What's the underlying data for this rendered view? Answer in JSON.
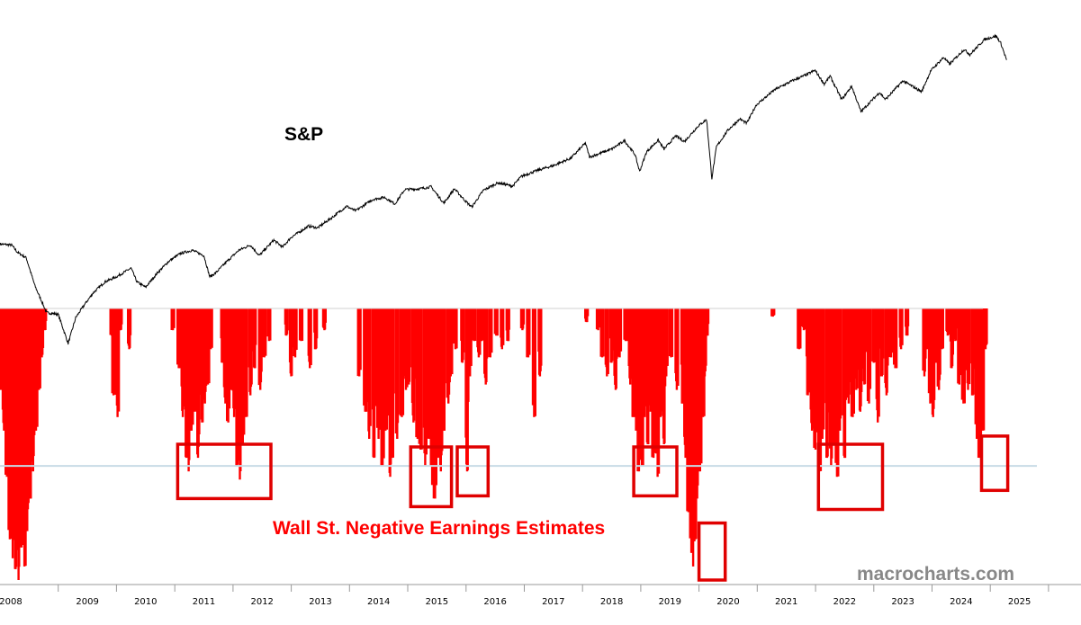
{
  "colors": {
    "price_line": "#000000",
    "bars": "#ff0000",
    "highlight_boxes": "#e00000",
    "threshold_line": "#c8dce6",
    "axis": "#999999",
    "label_red": "#ff0000",
    "watermark": "#888888"
  },
  "labels": {
    "sp": "S&P",
    "negative": "Wall St. Negative Earnings Estimates",
    "watermark": "macrocharts.com"
  },
  "chart_data": {
    "type": "line",
    "x_tick_labels": [
      "2008",
      "2009",
      "2010",
      "2011",
      "2012",
      "2013",
      "2014",
      "2015",
      "2016",
      "2017",
      "2018",
      "2019",
      "2020",
      "2021",
      "2022",
      "2023",
      "2024",
      "2025"
    ],
    "xlim": [
      2008.0,
      2025.8
    ],
    "series": [
      {
        "name": "S&P",
        "style": "line",
        "points": [
          [
            2008.0,
            1410
          ],
          [
            2008.2,
            1400
          ],
          [
            2008.3,
            1330
          ],
          [
            2008.45,
            1280
          ],
          [
            2008.6,
            1050
          ],
          [
            2008.8,
            870
          ],
          [
            2009.0,
            860
          ],
          [
            2009.17,
            700
          ],
          [
            2009.3,
            840
          ],
          [
            2009.45,
            920
          ],
          [
            2009.6,
            1000
          ],
          [
            2009.8,
            1080
          ],
          [
            2010.0,
            1120
          ],
          [
            2010.25,
            1190
          ],
          [
            2010.35,
            1080
          ],
          [
            2010.5,
            1040
          ],
          [
            2010.7,
            1150
          ],
          [
            2010.9,
            1250
          ],
          [
            2011.1,
            1320
          ],
          [
            2011.3,
            1350
          ],
          [
            2011.5,
            1300
          ],
          [
            2011.6,
            1120
          ],
          [
            2011.7,
            1150
          ],
          [
            2011.9,
            1250
          ],
          [
            2012.1,
            1350
          ],
          [
            2012.3,
            1400
          ],
          [
            2012.45,
            1300
          ],
          [
            2012.7,
            1450
          ],
          [
            2012.85,
            1380
          ],
          [
            2013.0,
            1480
          ],
          [
            2013.3,
            1600
          ],
          [
            2013.45,
            1580
          ],
          [
            2013.7,
            1700
          ],
          [
            2013.95,
            1840
          ],
          [
            2014.1,
            1780
          ],
          [
            2014.4,
            1930
          ],
          [
            2014.6,
            1960
          ],
          [
            2014.78,
            1870
          ],
          [
            2014.95,
            2070
          ],
          [
            2015.2,
            2080
          ],
          [
            2015.4,
            2110
          ],
          [
            2015.62,
            1880
          ],
          [
            2015.8,
            2080
          ],
          [
            2016.0,
            1900
          ],
          [
            2016.1,
            1830
          ],
          [
            2016.3,
            2060
          ],
          [
            2016.55,
            2170
          ],
          [
            2016.8,
            2120
          ],
          [
            2016.95,
            2270
          ],
          [
            2017.2,
            2360
          ],
          [
            2017.5,
            2450
          ],
          [
            2017.8,
            2580
          ],
          [
            2018.05,
            2870
          ],
          [
            2018.12,
            2600
          ],
          [
            2018.5,
            2750
          ],
          [
            2018.72,
            2920
          ],
          [
            2018.9,
            2650
          ],
          [
            2018.98,
            2350
          ],
          [
            2019.1,
            2700
          ],
          [
            2019.3,
            2930
          ],
          [
            2019.4,
            2750
          ],
          [
            2019.6,
            3020
          ],
          [
            2019.75,
            2900
          ],
          [
            2019.98,
            3230
          ],
          [
            2020.13,
            3390
          ],
          [
            2020.22,
            2240
          ],
          [
            2020.3,
            2800
          ],
          [
            2020.5,
            3150
          ],
          [
            2020.7,
            3400
          ],
          [
            2020.82,
            3300
          ],
          [
            2020.98,
            3750
          ],
          [
            2021.3,
            4180
          ],
          [
            2021.6,
            4450
          ],
          [
            2021.85,
            4650
          ],
          [
            2021.99,
            4790
          ],
          [
            2022.15,
            4350
          ],
          [
            2022.25,
            4600
          ],
          [
            2022.45,
            3900
          ],
          [
            2022.62,
            4280
          ],
          [
            2022.78,
            3580
          ],
          [
            2022.95,
            3850
          ],
          [
            2023.1,
            4100
          ],
          [
            2023.2,
            3900
          ],
          [
            2023.5,
            4450
          ],
          [
            2023.82,
            4120
          ],
          [
            2023.98,
            4780
          ],
          [
            2024.2,
            5250
          ],
          [
            2024.3,
            5000
          ],
          [
            2024.55,
            5550
          ],
          [
            2024.65,
            5350
          ],
          [
            2024.9,
            5950
          ],
          [
            2025.1,
            6100
          ],
          [
            2025.18,
            5800
          ],
          [
            2025.28,
            5150
          ]
        ]
      },
      {
        "name": "Wall St. Negative Earnings Estimates",
        "style": "bars",
        "bars": [
          [
            2008.0,
            0.3
          ],
          [
            2008.05,
            0.45
          ],
          [
            2008.1,
            0.62
          ],
          [
            2008.15,
            0.85
          ],
          [
            2008.2,
            0.92
          ],
          [
            2008.25,
            0.96
          ],
          [
            2008.3,
            1.0
          ],
          [
            2008.35,
            0.88
          ],
          [
            2008.4,
            0.95
          ],
          [
            2008.45,
            0.82
          ],
          [
            2008.5,
            0.7
          ],
          [
            2008.55,
            0.6
          ],
          [
            2008.6,
            0.45
          ],
          [
            2008.65,
            0.3
          ],
          [
            2008.7,
            0.18
          ],
          [
            2008.75,
            0.08
          ],
          [
            2009.9,
            0.1
          ],
          [
            2009.93,
            0.32
          ],
          [
            2010.0,
            0.4
          ],
          [
            2010.05,
            0.08
          ],
          [
            2010.2,
            0.15
          ],
          [
            2010.95,
            0.08
          ],
          [
            2011.05,
            0.22
          ],
          [
            2011.12,
            0.4
          ],
          [
            2011.18,
            0.55
          ],
          [
            2011.22,
            0.6
          ],
          [
            2011.27,
            0.45
          ],
          [
            2011.33,
            0.38
          ],
          [
            2011.38,
            0.55
          ],
          [
            2011.45,
            0.42
          ],
          [
            2011.5,
            0.35
          ],
          [
            2011.55,
            0.28
          ],
          [
            2011.6,
            0.15
          ],
          [
            2011.8,
            0.2
          ],
          [
            2011.85,
            0.35
          ],
          [
            2011.9,
            0.42
          ],
          [
            2011.95,
            0.3
          ],
          [
            2012.0,
            0.4
          ],
          [
            2012.05,
            0.58
          ],
          [
            2012.1,
            0.63
          ],
          [
            2012.15,
            0.5
          ],
          [
            2012.2,
            0.4
          ],
          [
            2012.28,
            0.32
          ],
          [
            2012.35,
            0.22
          ],
          [
            2012.45,
            0.3
          ],
          [
            2012.52,
            0.18
          ],
          [
            2012.6,
            0.12
          ],
          [
            2012.9,
            0.1
          ],
          [
            2012.98,
            0.25
          ],
          [
            2013.05,
            0.18
          ],
          [
            2013.15,
            0.12
          ],
          [
            2013.3,
            0.22
          ],
          [
            2013.4,
            0.15
          ],
          [
            2013.55,
            0.08
          ],
          [
            2014.15,
            0.25
          ],
          [
            2014.25,
            0.38
          ],
          [
            2014.32,
            0.48
          ],
          [
            2014.4,
            0.55
          ],
          [
            2014.48,
            0.48
          ],
          [
            2014.55,
            0.58
          ],
          [
            2014.6,
            0.45
          ],
          [
            2014.68,
            0.62
          ],
          [
            2014.72,
            0.55
          ],
          [
            2014.8,
            0.48
          ],
          [
            2014.88,
            0.4
          ],
          [
            2014.95,
            0.3
          ],
          [
            2015.0,
            0.28
          ],
          [
            2015.08,
            0.42
          ],
          [
            2015.15,
            0.48
          ],
          [
            2015.2,
            0.52
          ],
          [
            2015.28,
            0.58
          ],
          [
            2015.35,
            0.48
          ],
          [
            2015.4,
            0.65
          ],
          [
            2015.45,
            0.7
          ],
          [
            2015.5,
            0.55
          ],
          [
            2015.55,
            0.6
          ],
          [
            2015.6,
            0.45
          ],
          [
            2015.68,
            0.35
          ],
          [
            2015.72,
            0.25
          ],
          [
            2015.8,
            0.15
          ],
          [
            2015.92,
            0.2
          ],
          [
            2016.0,
            0.6
          ],
          [
            2016.05,
            0.25
          ],
          [
            2016.12,
            0.12
          ],
          [
            2016.2,
            0.18
          ],
          [
            2016.25,
            0.12
          ],
          [
            2016.32,
            0.28
          ],
          [
            2016.4,
            0.18
          ],
          [
            2016.5,
            0.1
          ],
          [
            2016.6,
            0.15
          ],
          [
            2016.7,
            0.12
          ],
          [
            2016.95,
            0.08
          ],
          [
            2017.05,
            0.18
          ],
          [
            2017.15,
            0.4
          ],
          [
            2017.25,
            0.25
          ],
          [
            2018.05,
            0.05
          ],
          [
            2018.25,
            0.08
          ],
          [
            2018.32,
            0.18
          ],
          [
            2018.4,
            0.25
          ],
          [
            2018.48,
            0.2
          ],
          [
            2018.55,
            0.3
          ],
          [
            2018.62,
            0.18
          ],
          [
            2018.72,
            0.12
          ],
          [
            2018.8,
            0.28
          ],
          [
            2018.85,
            0.4
          ],
          [
            2018.9,
            0.45
          ],
          [
            2018.95,
            0.6
          ],
          [
            2019.0,
            0.58
          ],
          [
            2019.05,
            0.4
          ],
          [
            2019.1,
            0.5
          ],
          [
            2019.15,
            0.38
          ],
          [
            2019.2,
            0.55
          ],
          [
            2019.27,
            0.62
          ],
          [
            2019.32,
            0.4
          ],
          [
            2019.38,
            0.5
          ],
          [
            2019.42,
            0.25
          ],
          [
            2019.5,
            0.18
          ],
          [
            2019.6,
            0.3
          ],
          [
            2019.7,
            0.35
          ],
          [
            2019.75,
            0.55
          ],
          [
            2019.8,
            0.75
          ],
          [
            2019.85,
            0.9
          ],
          [
            2019.88,
            0.95
          ],
          [
            2019.92,
            0.85
          ],
          [
            2019.95,
            0.7
          ],
          [
            2020.0,
            0.6
          ],
          [
            2020.05,
            0.4
          ],
          [
            2020.08,
            0.25
          ],
          [
            2020.12,
            0.1
          ],
          [
            2021.25,
            0.03
          ],
          [
            2021.7,
            0.15
          ],
          [
            2021.78,
            0.08
          ],
          [
            2021.85,
            0.32
          ],
          [
            2021.92,
            0.45
          ],
          [
            2021.98,
            0.52
          ],
          [
            2022.05,
            0.6
          ],
          [
            2022.1,
            0.48
          ],
          [
            2022.18,
            0.55
          ],
          [
            2022.25,
            0.58
          ],
          [
            2022.3,
            0.5
          ],
          [
            2022.35,
            0.62
          ],
          [
            2022.4,
            0.45
          ],
          [
            2022.48,
            0.55
          ],
          [
            2022.55,
            0.35
          ],
          [
            2022.62,
            0.4
          ],
          [
            2022.68,
            0.3
          ],
          [
            2022.75,
            0.38
          ],
          [
            2022.82,
            0.28
          ],
          [
            2022.9,
            0.35
          ],
          [
            2022.98,
            0.2
          ],
          [
            2023.05,
            0.42
          ],
          [
            2023.12,
            0.25
          ],
          [
            2023.2,
            0.32
          ],
          [
            2023.28,
            0.18
          ],
          [
            2023.35,
            0.22
          ],
          [
            2023.45,
            0.15
          ],
          [
            2023.55,
            0.1
          ],
          [
            2023.85,
            0.25
          ],
          [
            2023.9,
            0.15
          ],
          [
            2023.95,
            0.35
          ],
          [
            2024.0,
            0.4
          ],
          [
            2024.05,
            0.2
          ],
          [
            2024.1,
            0.3
          ],
          [
            2024.15,
            0.15
          ],
          [
            2024.25,
            0.1
          ],
          [
            2024.32,
            0.22
          ],
          [
            2024.38,
            0.12
          ],
          [
            2024.45,
            0.28
          ],
          [
            2024.52,
            0.35
          ],
          [
            2024.6,
            0.3
          ],
          [
            2024.68,
            0.32
          ],
          [
            2024.75,
            0.48
          ],
          [
            2024.8,
            0.55
          ],
          [
            2024.85,
            0.45
          ],
          [
            2024.9,
            0.15
          ]
        ]
      }
    ],
    "highlight_boxes": [
      {
        "x_range": [
          2011.05,
          2012.65
        ],
        "level_range": [
          0.5,
          0.7
        ]
      },
      {
        "x_range": [
          2015.05,
          2015.75
        ],
        "level_range": [
          0.51,
          0.73
        ]
      },
      {
        "x_range": [
          2015.85,
          2016.38
        ],
        "level_range": [
          0.51,
          0.69
        ]
      },
      {
        "x_range": [
          2018.88,
          2019.62
        ],
        "level_range": [
          0.51,
          0.69
        ]
      },
      {
        "x_range": [
          2020.0,
          2020.45
        ],
        "level_range": [
          0.79,
          1.0
        ]
      },
      {
        "x_range": [
          2022.05,
          2023.15
        ],
        "level_range": [
          0.5,
          0.74
        ]
      },
      {
        "x_range": [
          2024.85,
          2025.3
        ],
        "level_range": [
          0.47,
          0.67
        ]
      }
    ],
    "threshold_level": 0.58
  }
}
